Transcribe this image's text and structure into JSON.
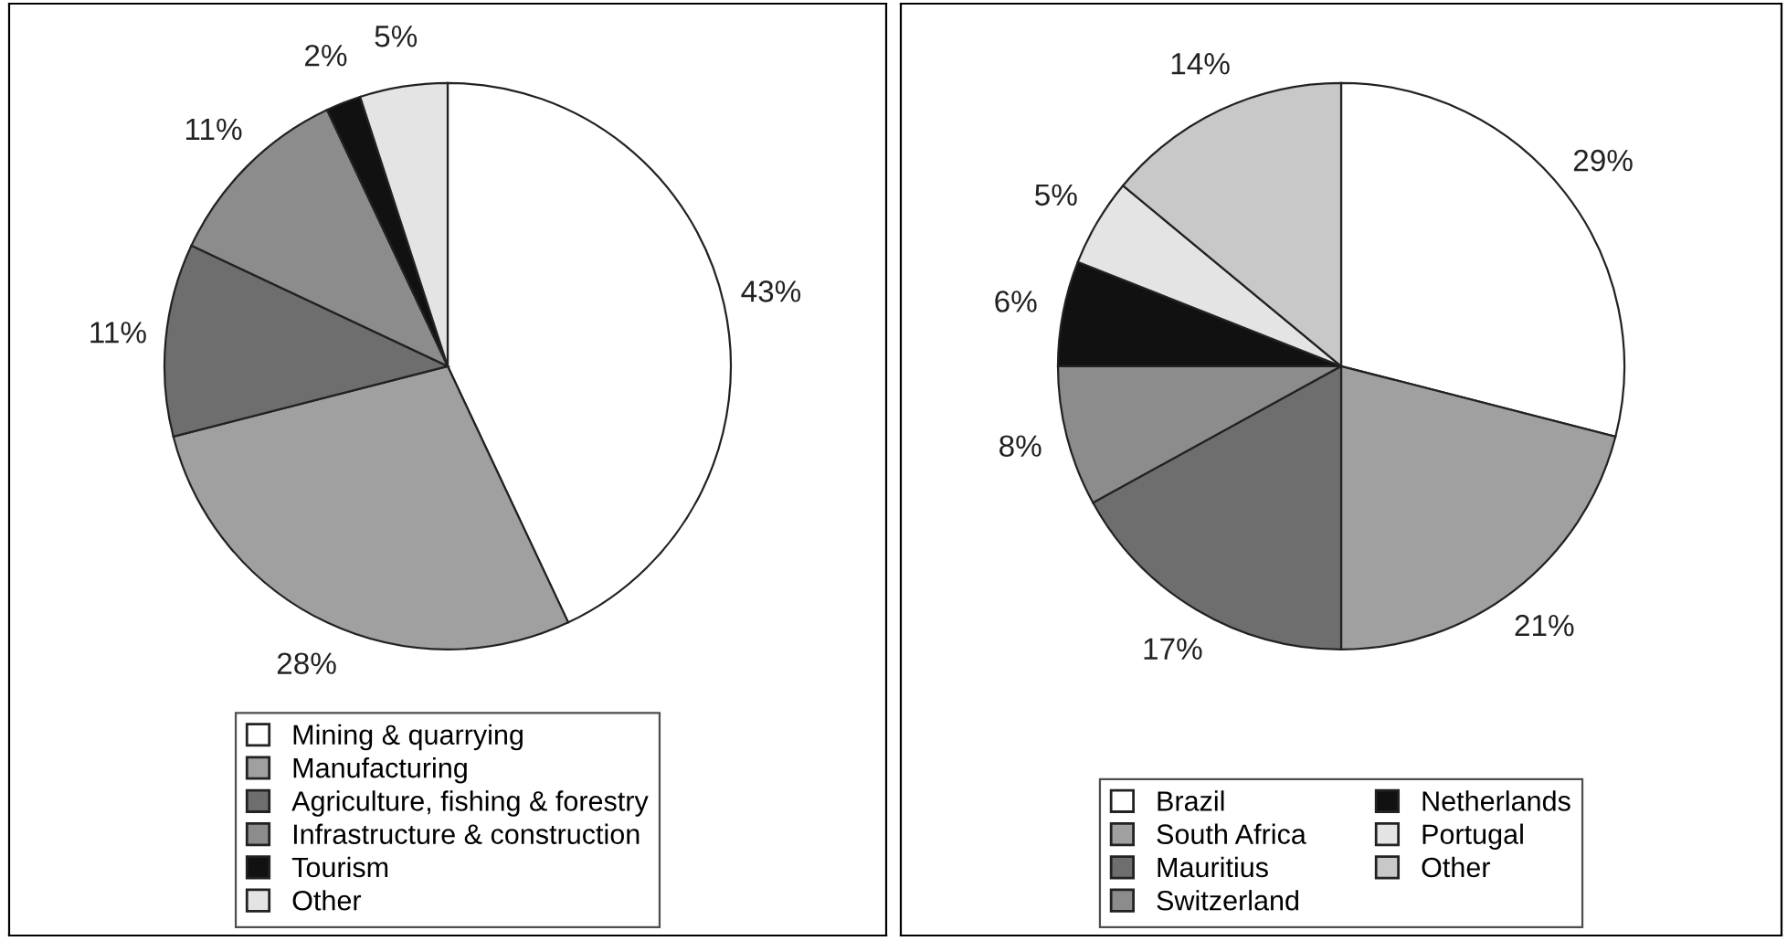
{
  "chart_data": [
    {
      "type": "pie",
      "categories": [
        "Mining & quarrying",
        "Manufacturing",
        "Agriculture, fishing & forestry",
        "Infrastructure & construction",
        "Tourism",
        "Other"
      ],
      "values": [
        43,
        28,
        11,
        11,
        2,
        5
      ],
      "value_labels": [
        "43%",
        "28%",
        "11%",
        "11%",
        "2%",
        "5%"
      ],
      "colors": [
        "#ffffff",
        "#a0a0a0",
        "#6e6e6e",
        "#8c8c8c",
        "#111111",
        "#e4e4e4"
      ],
      "legend": "bottom"
    },
    {
      "type": "pie",
      "categories": [
        "Brazil",
        "South Africa",
        "Mauritius",
        "Switzerland",
        "Netherlands",
        "Portugal",
        "Other"
      ],
      "values": [
        29,
        21,
        17,
        8,
        6,
        5,
        14
      ],
      "value_labels": [
        "29%",
        "21%",
        "17%",
        "8%",
        "6%",
        "5%",
        "14%"
      ],
      "colors": [
        "#ffffff",
        "#a0a0a0",
        "#6e6e6e",
        "#8c8c8c",
        "#111111",
        "#e4e4e4",
        "#c8c8c8"
      ],
      "legend": "bottom"
    }
  ]
}
